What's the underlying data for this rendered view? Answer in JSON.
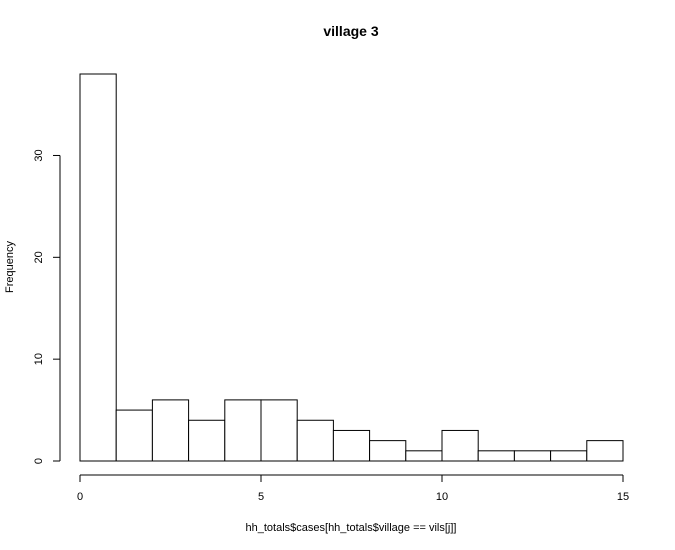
{
  "chart_data": {
    "type": "bar",
    "title": "village 3",
    "xlabel": "hh_totals$cases[hh_totals$village == vils[j]]",
    "ylabel": "Frequency",
    "bins": [
      {
        "from": 0,
        "to": 1,
        "count": 38
      },
      {
        "from": 1,
        "to": 2,
        "count": 5
      },
      {
        "from": 2,
        "to": 3,
        "count": 6
      },
      {
        "from": 3,
        "to": 4,
        "count": 4
      },
      {
        "from": 4,
        "to": 5,
        "count": 6
      },
      {
        "from": 5,
        "to": 6,
        "count": 6
      },
      {
        "from": 6,
        "to": 7,
        "count": 4
      },
      {
        "from": 7,
        "to": 8,
        "count": 3
      },
      {
        "from": 8,
        "to": 9,
        "count": 2
      },
      {
        "from": 9,
        "to": 10,
        "count": 1
      },
      {
        "from": 10,
        "to": 11,
        "count": 3
      },
      {
        "from": 11,
        "to": 12,
        "count": 1
      },
      {
        "from": 12,
        "to": 13,
        "count": 1
      },
      {
        "from": 13,
        "to": 14,
        "count": 1
      },
      {
        "from": 14,
        "to": 15,
        "count": 2
      }
    ],
    "xlim": [
      0,
      15
    ],
    "ylim": [
      0,
      38
    ],
    "xticks": [
      0,
      5,
      10,
      15
    ],
    "yticks": [
      0,
      10,
      20,
      30
    ],
    "grid": false,
    "legend": "none",
    "colors": {
      "bar_fill": "#ffffff",
      "bar_stroke": "#000000"
    }
  }
}
